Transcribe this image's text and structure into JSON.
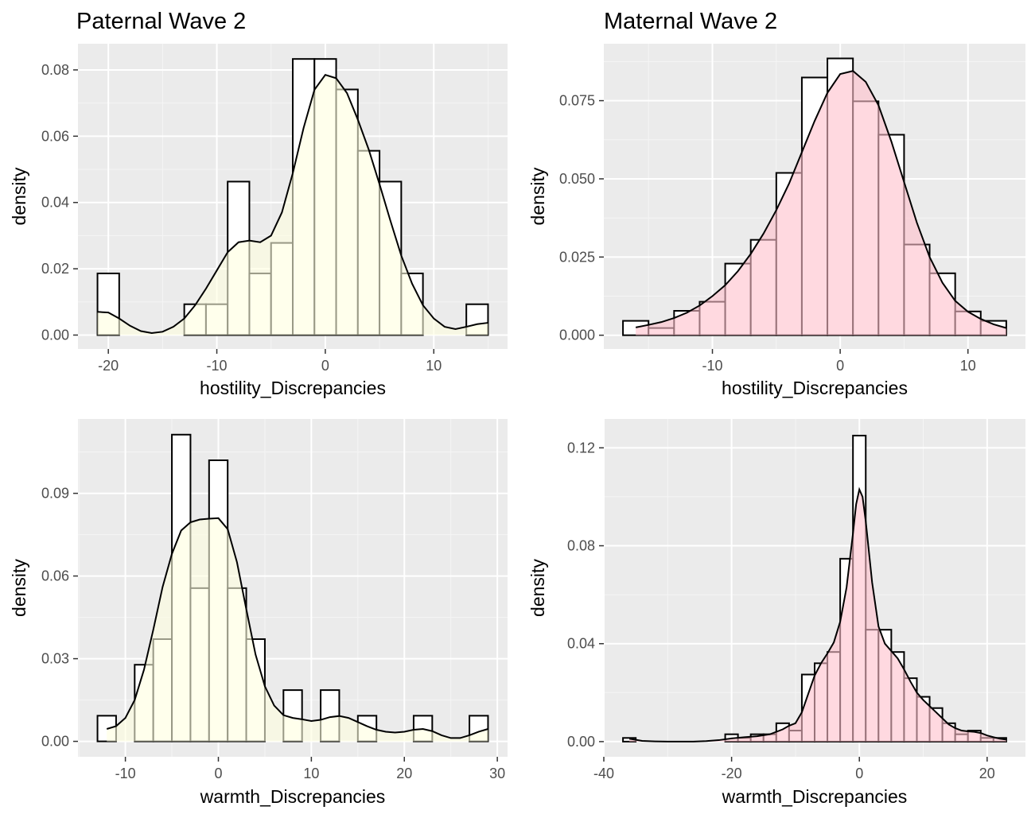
{
  "chart_data": [
    {
      "type": "histogram",
      "title": "Paternal Wave 2",
      "xlabel": "hostility_Discrepancies",
      "ylabel": "density",
      "xlim": [
        -22.8,
        16.8
      ],
      "ylim": [
        -0.0042,
        0.0879
      ],
      "xticks": [
        -20,
        -10,
        0,
        10
      ],
      "yticks": [
        0.0,
        0.02,
        0.04,
        0.06,
        0.08
      ],
      "ytick_decimals": 2,
      "grid": true,
      "fill": "#FFFFE0",
      "bins": [
        {
          "x0": -21,
          "x1": -19,
          "density": 0.0186
        },
        {
          "x0": -19,
          "x1": -17,
          "density": 0
        },
        {
          "x0": -17,
          "x1": -15,
          "density": 0
        },
        {
          "x0": -15,
          "x1": -13,
          "density": 0
        },
        {
          "x0": -13,
          "x1": -11,
          "density": 0.0093
        },
        {
          "x0": -11,
          "x1": -9,
          "density": 0.0093
        },
        {
          "x0": -9,
          "x1": -7,
          "density": 0.0463
        },
        {
          "x0": -7,
          "x1": -5,
          "density": 0.0186
        },
        {
          "x0": -5,
          "x1": -3,
          "density": 0.0278
        },
        {
          "x0": -3,
          "x1": -1,
          "density": 0.0833
        },
        {
          "x0": -1,
          "x1": 1,
          "density": 0.0833
        },
        {
          "x0": 1,
          "x1": 3,
          "density": 0.0741
        },
        {
          "x0": 3,
          "x1": 5,
          "density": 0.0556
        },
        {
          "x0": 5,
          "x1": 7,
          "density": 0.0463
        },
        {
          "x0": 7,
          "x1": 9,
          "density": 0.0186
        },
        {
          "x0": 9,
          "x1": 11,
          "density": 0
        },
        {
          "x0": 11,
          "x1": 13,
          "density": 0
        },
        {
          "x0": 13,
          "x1": 15,
          "density": 0.0093
        }
      ],
      "density_curve": {
        "x": [
          -21,
          -20,
          -19,
          -18,
          -17,
          -16,
          -15,
          -14,
          -13,
          -12,
          -11,
          -10,
          -9,
          -8,
          -7,
          -6,
          -5,
          -4,
          -3,
          -2,
          -1,
          0,
          1,
          2,
          3,
          4,
          5,
          6,
          7,
          8,
          9,
          10,
          11,
          12,
          13,
          14,
          15
        ],
        "y": [
          0.007,
          0.0068,
          0.005,
          0.0028,
          0.0012,
          0.0006,
          0.001,
          0.0025,
          0.005,
          0.009,
          0.014,
          0.0195,
          0.025,
          0.028,
          0.0285,
          0.028,
          0.03,
          0.037,
          0.0488,
          0.0625,
          0.074,
          0.0785,
          0.0775,
          0.073,
          0.065,
          0.056,
          0.0455,
          0.0345,
          0.024,
          0.0155,
          0.009,
          0.005,
          0.0025,
          0.0018,
          0.0025,
          0.0033,
          0.0037
        ]
      }
    },
    {
      "type": "histogram",
      "title": "Maternal Wave 2",
      "xlabel": "hostility_Discrepancies",
      "ylabel": "density",
      "xlim": [
        -18.5,
        14.5
      ],
      "ylim": [
        -0.0044,
        0.0932
      ],
      "xticks": [
        -10,
        0,
        10
      ],
      "yticks": [
        0.0,
        0.025,
        0.05,
        0.075
      ],
      "ytick_decimals": 3,
      "grid": true,
      "fill": "#FFC0CB",
      "bins": [
        {
          "x0": -17,
          "x1": -15,
          "density": 0.0046
        },
        {
          "x0": -15,
          "x1": -13,
          "density": 0.0023
        },
        {
          "x0": -13,
          "x1": -11,
          "density": 0.0078
        },
        {
          "x0": -11,
          "x1": -9,
          "density": 0.0107
        },
        {
          "x0": -9,
          "x1": -7,
          "density": 0.0229
        },
        {
          "x0": -7,
          "x1": -5,
          "density": 0.0305
        },
        {
          "x0": -5,
          "x1": -3,
          "density": 0.0519
        },
        {
          "x0": -3,
          "x1": -1,
          "density": 0.0824
        },
        {
          "x0": -1,
          "x1": 1,
          "density": 0.0885
        },
        {
          "x0": 1,
          "x1": 3,
          "density": 0.0748
        },
        {
          "x0": 3,
          "x1": 5,
          "density": 0.0641
        },
        {
          "x0": 5,
          "x1": 7,
          "density": 0.029
        },
        {
          "x0": 7,
          "x1": 9,
          "density": 0.0198
        },
        {
          "x0": 9,
          "x1": 11,
          "density": 0.0076
        },
        {
          "x0": 11,
          "x1": 13,
          "density": 0.0046
        }
      ],
      "density_curve": {
        "x": [
          -16,
          -15,
          -14,
          -13,
          -12,
          -11,
          -10,
          -9,
          -8,
          -7,
          -6,
          -5,
          -4,
          -3,
          -2,
          -1,
          0,
          1,
          2,
          3,
          4,
          5,
          6,
          7,
          8,
          9,
          10,
          11,
          12,
          13
        ],
        "y": [
          0.0025,
          0.0033,
          0.0042,
          0.0055,
          0.0072,
          0.0095,
          0.0125,
          0.016,
          0.0205,
          0.026,
          0.0325,
          0.04,
          0.0485,
          0.0585,
          0.0685,
          0.0775,
          0.0835,
          0.0845,
          0.081,
          0.0735,
          0.062,
          0.049,
          0.036,
          0.025,
          0.0168,
          0.011,
          0.0075,
          0.0052,
          0.0035,
          0.0023
        ]
      }
    },
    {
      "type": "histogram",
      "title": "",
      "xlabel": "warmth_Discrepancies",
      "ylabel": "density",
      "xlim": [
        -15.1,
        31.1
      ],
      "ylim": [
        -0.0056,
        0.117
      ],
      "xticks": [
        -10,
        0,
        10,
        20,
        30
      ],
      "yticks": [
        0.0,
        0.03,
        0.06,
        0.09
      ],
      "ytick_decimals": 2,
      "grid": true,
      "fill": "#FFFFE0",
      "bins": [
        {
          "x0": -13,
          "x1": -11,
          "density": 0.0093
        },
        {
          "x0": -11,
          "x1": -9,
          "density": 0
        },
        {
          "x0": -9,
          "x1": -7,
          "density": 0.0278
        },
        {
          "x0": -7,
          "x1": -5,
          "density": 0.0371
        },
        {
          "x0": -5,
          "x1": -3,
          "density": 0.1113
        },
        {
          "x0": -3,
          "x1": -1,
          "density": 0.0556
        },
        {
          "x0": -1,
          "x1": 1,
          "density": 0.102
        },
        {
          "x0": 1,
          "x1": 3,
          "density": 0.0556
        },
        {
          "x0": 3,
          "x1": 5,
          "density": 0.0371
        },
        {
          "x0": 5,
          "x1": 7,
          "density": 0
        },
        {
          "x0": 7,
          "x1": 9,
          "density": 0.0186
        },
        {
          "x0": 9,
          "x1": 11,
          "density": 0
        },
        {
          "x0": 11,
          "x1": 13,
          "density": 0.0186
        },
        {
          "x0": 13,
          "x1": 15,
          "density": 0
        },
        {
          "x0": 15,
          "x1": 17,
          "density": 0.0093
        },
        {
          "x0": 17,
          "x1": 19,
          "density": 0
        },
        {
          "x0": 19,
          "x1": 21,
          "density": 0
        },
        {
          "x0": 21,
          "x1": 23,
          "density": 0.0093
        },
        {
          "x0": 23,
          "x1": 25,
          "density": 0
        },
        {
          "x0": 25,
          "x1": 27,
          "density": 0
        },
        {
          "x0": 27,
          "x1": 29,
          "density": 0.0093
        }
      ],
      "density_curve": {
        "x": [
          -12,
          -11,
          -10,
          -9,
          -8,
          -7,
          -6,
          -5,
          -4,
          -3,
          -2,
          -1,
          0,
          1,
          2,
          3,
          4,
          5,
          6,
          7,
          8,
          9,
          10,
          11,
          12,
          13,
          14,
          15,
          16,
          17,
          18,
          19,
          20,
          21,
          22,
          23,
          24,
          25,
          26,
          27,
          28,
          29
        ],
        "y": [
          0.0045,
          0.0055,
          0.0085,
          0.015,
          0.026,
          0.0405,
          0.056,
          0.068,
          0.0765,
          0.0795,
          0.0805,
          0.0808,
          0.081,
          0.077,
          0.065,
          0.048,
          0.0315,
          0.02,
          0.013,
          0.0095,
          0.0085,
          0.008,
          0.0074,
          0.0078,
          0.0088,
          0.0092,
          0.0085,
          0.007,
          0.0055,
          0.0042,
          0.0035,
          0.0032,
          0.0035,
          0.0042,
          0.0045,
          0.0037,
          0.0022,
          0.0012,
          0.0012,
          0.0022,
          0.0035,
          0.0045
        ]
      }
    },
    {
      "type": "histogram",
      "title": "",
      "xlabel": "warmth_Discrepancies",
      "ylabel": "density",
      "xlim": [
        -40,
        26
      ],
      "ylim": [
        -0.0062,
        0.1318
      ],
      "xticks": [
        -40,
        -20,
        0,
        20
      ],
      "yticks": [
        0.0,
        0.04,
        0.08,
        0.12
      ],
      "ytick_decimals": 2,
      "grid": true,
      "fill": "#FFC0CB",
      "bins": [
        {
          "x0": -37,
          "x1": -35,
          "density": 0.0015
        },
        {
          "x0": -35,
          "x1": -33,
          "density": 0
        },
        {
          "x0": -33,
          "x1": -31,
          "density": 0
        },
        {
          "x0": -31,
          "x1": -29,
          "density": 0
        },
        {
          "x0": -29,
          "x1": -27,
          "density": 0
        },
        {
          "x0": -27,
          "x1": -25,
          "density": 0
        },
        {
          "x0": -25,
          "x1": -23,
          "density": 0
        },
        {
          "x0": -23,
          "x1": -21,
          "density": 0
        },
        {
          "x0": -21,
          "x1": -19,
          "density": 0.003
        },
        {
          "x0": -19,
          "x1": -17,
          "density": 0.0015
        },
        {
          "x0": -17,
          "x1": -15,
          "density": 0.003
        },
        {
          "x0": -15,
          "x1": -13,
          "density": 0.003
        },
        {
          "x0": -13,
          "x1": -11,
          "density": 0.0075
        },
        {
          "x0": -11,
          "x1": -9,
          "density": 0.0045
        },
        {
          "x0": -9,
          "x1": -7,
          "density": 0.0274
        },
        {
          "x0": -7,
          "x1": -5,
          "density": 0.032
        },
        {
          "x0": -5,
          "x1": -3,
          "density": 0.0366
        },
        {
          "x0": -3,
          "x1": -1,
          "density": 0.0747
        },
        {
          "x0": -1,
          "x1": 1,
          "density": 0.125
        },
        {
          "x0": 1,
          "x1": 3,
          "density": 0.0457
        },
        {
          "x0": 3,
          "x1": 5,
          "density": 0.0457
        },
        {
          "x0": 5,
          "x1": 7,
          "density": 0.0366
        },
        {
          "x0": 7,
          "x1": 9,
          "density": 0.0259
        },
        {
          "x0": 9,
          "x1": 11,
          "density": 0.0183
        },
        {
          "x0": 11,
          "x1": 13,
          "density": 0.0137
        },
        {
          "x0": 13,
          "x1": 15,
          "density": 0.0075
        },
        {
          "x0": 15,
          "x1": 17,
          "density": 0.003
        },
        {
          "x0": 17,
          "x1": 19,
          "density": 0.0045
        },
        {
          "x0": 19,
          "x1": 21,
          "density": 0.0015
        },
        {
          "x0": 21,
          "x1": 23,
          "density": 0.0015
        }
      ],
      "density_curve": {
        "x": [
          -36,
          -34,
          -32,
          -30,
          -28,
          -26,
          -24,
          -22,
          -20,
          -18,
          -16,
          -14,
          -12,
          -11,
          -10,
          -9,
          -8,
          -7,
          -6,
          -5,
          -4,
          -3,
          -2,
          -1,
          -0.5,
          0,
          0.5,
          1,
          2,
          3,
          4,
          5,
          6,
          7,
          8,
          9,
          10,
          11,
          12,
          13,
          14,
          15,
          16,
          17,
          18,
          19,
          20,
          21,
          22,
          23
        ],
        "y": [
          0.0012,
          0.0003,
          0.0001,
          0.0,
          0.0,
          0.0,
          0.0002,
          0.0006,
          0.0013,
          0.0018,
          0.0022,
          0.003,
          0.005,
          0.0065,
          0.0075,
          0.012,
          0.0195,
          0.027,
          0.032,
          0.036,
          0.0405,
          0.049,
          0.063,
          0.085,
          0.097,
          0.103,
          0.1,
          0.09,
          0.065,
          0.047,
          0.04,
          0.037,
          0.034,
          0.0295,
          0.0245,
          0.02,
          0.017,
          0.0145,
          0.012,
          0.0095,
          0.007,
          0.0055,
          0.0045,
          0.0042,
          0.004,
          0.0035,
          0.0025,
          0.0018,
          0.0012,
          0.0008
        ]
      }
    }
  ]
}
